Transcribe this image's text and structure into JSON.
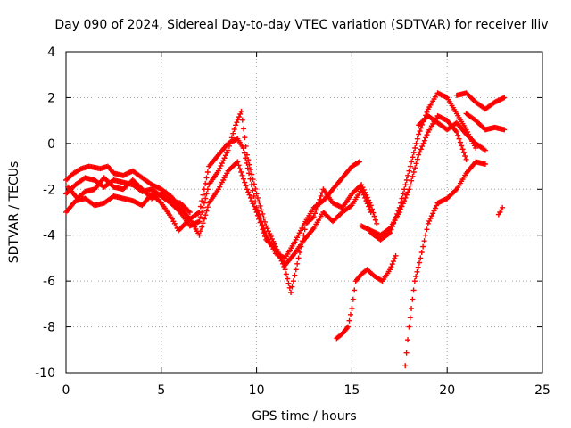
{
  "chart_data": {
    "type": "scatter",
    "title": "Day 090 of 2024, Sidereal Day-to-day VTEC variation (SDTVAR) for receiver lliv",
    "xlabel": "GPS time / hours",
    "ylabel": "SDTVAR / TECUs",
    "xlim": [
      0,
      25
    ],
    "ylim": [
      -10,
      4
    ],
    "xticks": [
      "0",
      "5",
      "10",
      "15",
      "20",
      "25"
    ],
    "yticks": [
      "-10",
      "-8",
      "-6",
      "-4",
      "-2",
      "0",
      "2",
      "4"
    ],
    "grid": true,
    "marker": "+",
    "color": "#ff0000",
    "series": [
      {
        "points": [
          [
            0.0,
            -1.6
          ],
          [
            0.4,
            -1.3
          ],
          [
            0.8,
            -1.1
          ],
          [
            1.2,
            -1.0
          ],
          [
            1.8,
            -1.1
          ],
          [
            2.2,
            -1.0
          ],
          [
            2.5,
            -1.3
          ],
          [
            3.0,
            -1.4
          ],
          [
            3.5,
            -1.2
          ],
          [
            4.0,
            -1.5
          ],
          [
            4.5,
            -1.8
          ],
          [
            5.0,
            -2.0
          ],
          [
            5.5,
            -2.3
          ],
          [
            6.0,
            -2.8
          ],
          [
            6.5,
            -3.3
          ],
          [
            7.0,
            -3.0
          ],
          [
            7.5,
            -1.0
          ],
          [
            8.0,
            -0.5
          ],
          [
            8.5,
            0.0
          ],
          [
            9.0,
            0.2
          ],
          [
            9.3,
            -0.2
          ],
          [
            9.6,
            -1.3
          ],
          [
            10.0,
            -2.8
          ],
          [
            10.5,
            -4.0
          ],
          [
            11.0,
            -4.8
          ],
          [
            11.5,
            -5.0
          ],
          [
            12.0,
            -4.3
          ],
          [
            12.5,
            -3.5
          ],
          [
            13.0,
            -2.8
          ],
          [
            13.5,
            -2.5
          ],
          [
            14.0,
            -2.0
          ],
          [
            14.5,
            -1.5
          ],
          [
            15.0,
            -1.0
          ],
          [
            15.4,
            -0.8
          ]
        ]
      },
      {
        "points": [
          [
            0.0,
            -2.2
          ],
          [
            0.5,
            -1.8
          ],
          [
            1.0,
            -1.5
          ],
          [
            1.5,
            -1.6
          ],
          [
            2.0,
            -1.9
          ],
          [
            2.5,
            -1.6
          ],
          [
            3.0,
            -1.7
          ],
          [
            3.5,
            -1.8
          ],
          [
            4.0,
            -2.1
          ],
          [
            4.5,
            -2.0
          ],
          [
            5.0,
            -2.3
          ],
          [
            5.5,
            -2.6
          ],
          [
            6.0,
            -3.0
          ],
          [
            6.5,
            -3.6
          ],
          [
            7.0,
            -3.4
          ],
          [
            7.5,
            -1.8
          ],
          [
            8.0,
            -1.2
          ],
          [
            8.5,
            -0.3
          ],
          [
            8.9,
            0.8
          ],
          [
            9.2,
            1.4
          ],
          [
            9.5,
            -0.5
          ],
          [
            10.0,
            -2.2
          ],
          [
            10.5,
            -3.6
          ],
          [
            11.0,
            -4.5
          ],
          [
            11.5,
            -5.5
          ],
          [
            11.8,
            -6.5
          ],
          [
            12.2,
            -5.0
          ],
          [
            12.6,
            -3.5
          ],
          [
            13.0,
            -3.2
          ],
          [
            13.5,
            -2.0
          ],
          [
            14.0,
            -2.6
          ],
          [
            14.5,
            -2.8
          ],
          [
            15.0,
            -2.2
          ],
          [
            15.5,
            -1.8
          ],
          [
            16.0,
            -2.7
          ],
          [
            16.3,
            -3.5
          ]
        ]
      },
      {
        "points": [
          [
            0.0,
            -3.0
          ],
          [
            0.5,
            -2.5
          ],
          [
            1.0,
            -2.4
          ],
          [
            1.5,
            -2.7
          ],
          [
            2.0,
            -2.6
          ],
          [
            2.5,
            -2.3
          ],
          [
            3.0,
            -2.4
          ],
          [
            3.5,
            -2.5
          ],
          [
            4.0,
            -2.7
          ],
          [
            4.5,
            -2.2
          ],
          [
            5.0,
            -2.6
          ],
          [
            5.5,
            -3.2
          ],
          [
            5.9,
            -3.8
          ],
          [
            6.5,
            -3.3
          ],
          [
            7.0,
            -4.0
          ],
          [
            7.5,
            -2.6
          ],
          [
            8.0,
            -2.0
          ],
          [
            8.5,
            -1.2
          ],
          [
            9.0,
            -0.8
          ],
          [
            9.5,
            -2.0
          ],
          [
            10.0,
            -3.0
          ],
          [
            10.5,
            -4.2
          ],
          [
            11.0,
            -4.6
          ],
          [
            11.5,
            -5.3
          ],
          [
            12.0,
            -4.8
          ],
          [
            12.5,
            -4.2
          ],
          [
            13.0,
            -3.7
          ],
          [
            13.5,
            -3.0
          ],
          [
            14.0,
            -3.4
          ],
          [
            14.5,
            -3.0
          ],
          [
            15.0,
            -2.7
          ],
          [
            15.5,
            -2.0
          ],
          [
            16.0,
            -3.0
          ]
        ]
      },
      {
        "points": [
          [
            0.1,
            -1.9
          ],
          [
            0.6,
            -2.4
          ],
          [
            1.0,
            -2.1
          ],
          [
            1.5,
            -2.0
          ],
          [
            2.0,
            -1.5
          ],
          [
            2.5,
            -1.9
          ],
          [
            3.0,
            -2.0
          ],
          [
            3.5,
            -1.6
          ],
          [
            4.0,
            -2.0
          ],
          [
            4.5,
            -2.4
          ],
          [
            5.0,
            -2.2
          ],
          [
            5.5,
            -2.5
          ],
          [
            6.0,
            -2.6
          ],
          [
            6.5,
            -3.0
          ]
        ]
      },
      {
        "points": [
          [
            14.2,
            -8.5
          ],
          [
            14.5,
            -8.3
          ],
          [
            14.8,
            -8.0
          ],
          [
            15.0,
            -7.2
          ],
          [
            15.2,
            -6.0
          ],
          [
            15.5,
            -5.7
          ],
          [
            15.8,
            -5.5
          ],
          [
            16.2,
            -5.8
          ],
          [
            16.6,
            -6.0
          ],
          [
            17.0,
            -5.5
          ],
          [
            17.3,
            -4.9
          ]
        ]
      },
      {
        "points": [
          [
            15.5,
            -3.6
          ],
          [
            16.0,
            -3.8
          ],
          [
            16.5,
            -4.0
          ],
          [
            17.0,
            -3.7
          ],
          [
            17.5,
            -3.0
          ],
          [
            18.0,
            -2.0
          ],
          [
            18.5,
            -0.5
          ],
          [
            19.0,
            0.5
          ],
          [
            19.5,
            1.2
          ],
          [
            20.0,
            1.0
          ],
          [
            20.5,
            0.5
          ],
          [
            21.0,
            -0.7
          ]
        ]
      },
      {
        "points": [
          [
            16.0,
            -3.9
          ],
          [
            16.5,
            -4.2
          ],
          [
            17.0,
            -3.9
          ],
          [
            17.5,
            -2.8
          ],
          [
            18.0,
            -1.2
          ],
          [
            18.5,
            0.4
          ],
          [
            19.0,
            1.5
          ],
          [
            19.5,
            2.2
          ],
          [
            20.0,
            2.0
          ],
          [
            20.5,
            1.3
          ],
          [
            21.0,
            0.6
          ],
          [
            21.5,
            -0.2
          ]
        ]
      },
      {
        "points": [
          [
            18.5,
            0.8
          ],
          [
            19.0,
            1.2
          ],
          [
            19.5,
            0.9
          ],
          [
            20.0,
            0.6
          ],
          [
            20.5,
            0.9
          ],
          [
            21.0,
            0.4
          ],
          [
            21.5,
            0.0
          ],
          [
            22.0,
            -0.3
          ]
        ]
      },
      {
        "points": [
          [
            20.5,
            2.1
          ],
          [
            21.0,
            2.2
          ],
          [
            21.5,
            1.8
          ],
          [
            22.0,
            1.5
          ],
          [
            22.5,
            1.8
          ],
          [
            23.0,
            2.0
          ]
        ]
      },
      {
        "points": [
          [
            21.0,
            1.3
          ],
          [
            21.5,
            1.0
          ],
          [
            22.0,
            0.6
          ],
          [
            22.5,
            0.7
          ],
          [
            23.0,
            0.6
          ]
        ]
      },
      {
        "points": [
          [
            17.8,
            -9.7
          ],
          [
            18.0,
            -8.0
          ],
          [
            18.3,
            -6.0
          ],
          [
            18.6,
            -5.0
          ],
          [
            19.0,
            -3.5
          ],
          [
            19.5,
            -2.6
          ],
          [
            20.0,
            -2.4
          ],
          [
            20.5,
            -2.0
          ],
          [
            21.0,
            -1.3
          ],
          [
            21.5,
            -0.8
          ],
          [
            22.0,
            -0.9
          ]
        ]
      },
      {
        "points": [
          [
            22.7,
            -3.1
          ],
          [
            22.9,
            -2.8
          ]
        ]
      }
    ]
  }
}
